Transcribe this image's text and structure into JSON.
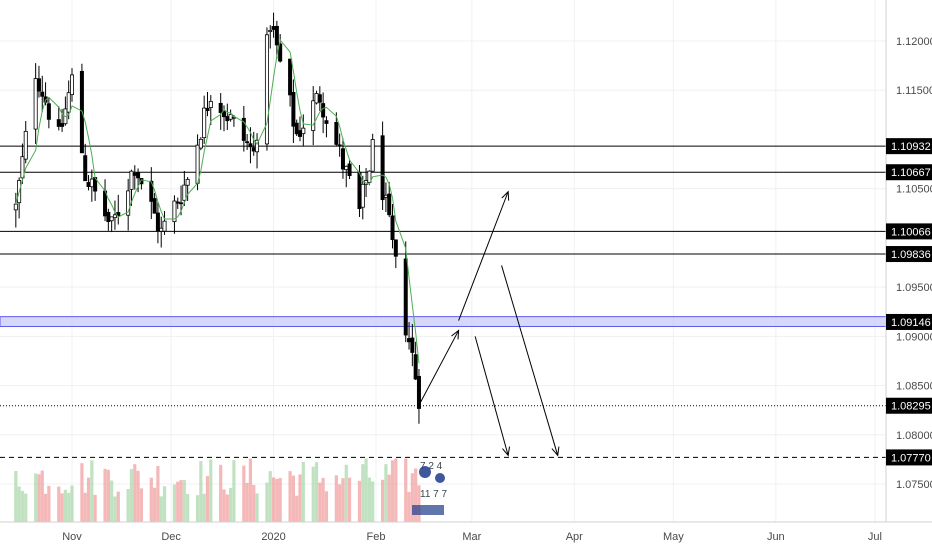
{
  "chart_data": {
    "type": "candlestick",
    "instrument": "EURUSD",
    "x_ticks": [
      {
        "label": "Nov",
        "date": "2019-11-01"
      },
      {
        "label": "Dec",
        "date": "2019-12-01"
      },
      {
        "label": "2020",
        "date": "2020-01-01"
      },
      {
        "label": "Feb",
        "date": "2020-02-01"
      },
      {
        "label": "Mar",
        "date": "2020-03-01"
      },
      {
        "label": "Apr",
        "date": "2020-04-01"
      },
      {
        "label": "May",
        "date": "2020-05-01"
      },
      {
        "label": "Jun",
        "date": "2020-06-01"
      },
      {
        "label": "Jul",
        "date": "2020-07-01"
      }
    ],
    "y_ticks": [
      "1.12000",
      "1.11500",
      "1.10500",
      "1.09500",
      "1.09000",
      "1.08500",
      "1.08000",
      "1.07500"
    ],
    "ylim": [
      1.0725,
      1.124
    ],
    "grid": true,
    "levels": [
      {
        "label": "1.10932",
        "value": 1.10932,
        "style": "solid"
      },
      {
        "label": "1.10667",
        "value": 1.10667,
        "style": "solid"
      },
      {
        "label": "1.10066",
        "value": 1.10066,
        "style": "solid"
      },
      {
        "label": "1.09836",
        "value": 1.09836,
        "style": "solid"
      },
      {
        "label": "1.09146",
        "value": 1.09146,
        "style": "zone",
        "zone_from": 1.091,
        "zone_to": 1.092
      },
      {
        "label": "1.08295",
        "value": 1.08295,
        "style": "dotted"
      },
      {
        "label": "1.07770",
        "value": 1.0777,
        "style": "dashed"
      }
    ],
    "projection_arrows": [
      {
        "from": [
          "2020-02-14",
          1.083
        ],
        "to": [
          "2020-02-26",
          1.0906
        ]
      },
      {
        "from": [
          "2020-02-26",
          1.0916
        ],
        "to": [
          "2020-03-12",
          1.1047
        ]
      },
      {
        "from": [
          "2020-03-02",
          1.09
        ],
        "to": [
          "2020-03-12",
          1.0779
        ]
      },
      {
        "from": [
          "2020-03-10",
          1.0972
        ],
        "to": [
          "2020-03-27",
          1.0779
        ]
      }
    ],
    "anchor_points": [
      {
        "date": "2019-10-15",
        "price": 1.103
      },
      {
        "date": "2019-10-21",
        "price": 1.117
      },
      {
        "date": "2019-10-28",
        "price": 1.11
      },
      {
        "date": "2019-11-01",
        "price": 1.116
      },
      {
        "date": "2019-11-05",
        "price": 1.1065
      },
      {
        "date": "2019-11-13",
        "price": 1.101
      },
      {
        "date": "2019-11-20",
        "price": 1.1075
      },
      {
        "date": "2019-11-28",
        "price": 1.1005
      },
      {
        "date": "2019-12-06",
        "price": 1.106
      },
      {
        "date": "2019-12-13",
        "price": 1.115
      },
      {
        "date": "2019-12-18",
        "price": 1.1125
      },
      {
        "date": "2019-12-26",
        "price": 1.1085
      },
      {
        "date": "2019-12-31",
        "price": 1.122
      },
      {
        "date": "2020-01-08",
        "price": 1.1105
      },
      {
        "date": "2020-01-15",
        "price": 1.1145
      },
      {
        "date": "2020-01-20",
        "price": 1.1095
      },
      {
        "date": "2020-01-27",
        "price": 1.1025
      },
      {
        "date": "2020-01-31",
        "price": 1.109
      },
      {
        "date": "2020-02-03",
        "price": 1.105
      },
      {
        "date": "2020-02-07",
        "price": 1.097
      },
      {
        "date": "2020-02-10",
        "price": 1.0912
      },
      {
        "date": "2020-02-12",
        "price": 1.088
      },
      {
        "date": "2020-02-14",
        "price": 1.084
      }
    ],
    "colors": {
      "candle": "#000000",
      "ma_line": "#4caf50",
      "zone_fill": "#c9c9f7",
      "zone_border": "#5c5cf0",
      "level_line": "#000000",
      "tag_bg": "#000000",
      "vol_up": "#a5d6a7",
      "vol_down": "#ef9a9a"
    }
  },
  "indicator": {
    "line1": "7  2  4",
    "line2": "11  7  7"
  }
}
